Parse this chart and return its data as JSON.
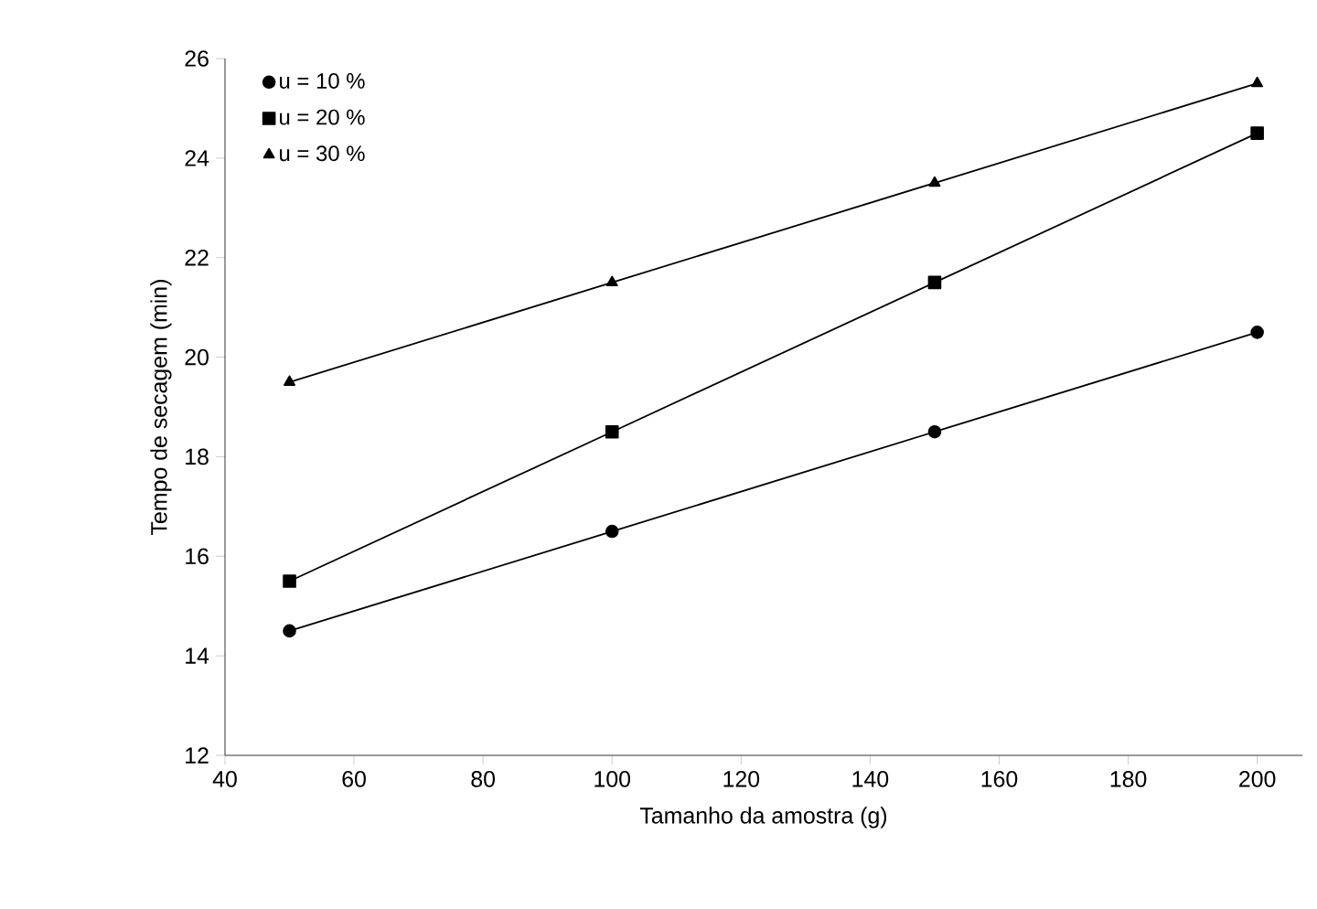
{
  "chart_data": {
    "type": "line",
    "xlabel": "Tamanho da amostra (g)",
    "ylabel": "Tempo de secagem (min)",
    "x": [
      50,
      100,
      150,
      200
    ],
    "series": [
      {
        "name": "u = 10 %",
        "color": "#000000",
        "marker": "circle",
        "values": [
          14.5,
          16.5,
          18.5,
          20.5
        ]
      },
      {
        "name": "u = 20 %",
        "color": "#000000",
        "marker": "square",
        "values": [
          15.5,
          18.5,
          21.5,
          24.5
        ]
      },
      {
        "name": "u = 30 %",
        "color": "#000000",
        "marker": "triangle",
        "values": [
          19.5,
          21.5,
          23.5,
          25.5
        ]
      }
    ],
    "xlim": [
      40,
      207
    ],
    "ylim": [
      12,
      26
    ],
    "xticks": [
      40,
      60,
      80,
      100,
      120,
      140,
      160,
      180,
      200
    ],
    "yticks": [
      12,
      14,
      16,
      18,
      20,
      22,
      24,
      26
    ],
    "legend": "top left",
    "grid": false
  }
}
